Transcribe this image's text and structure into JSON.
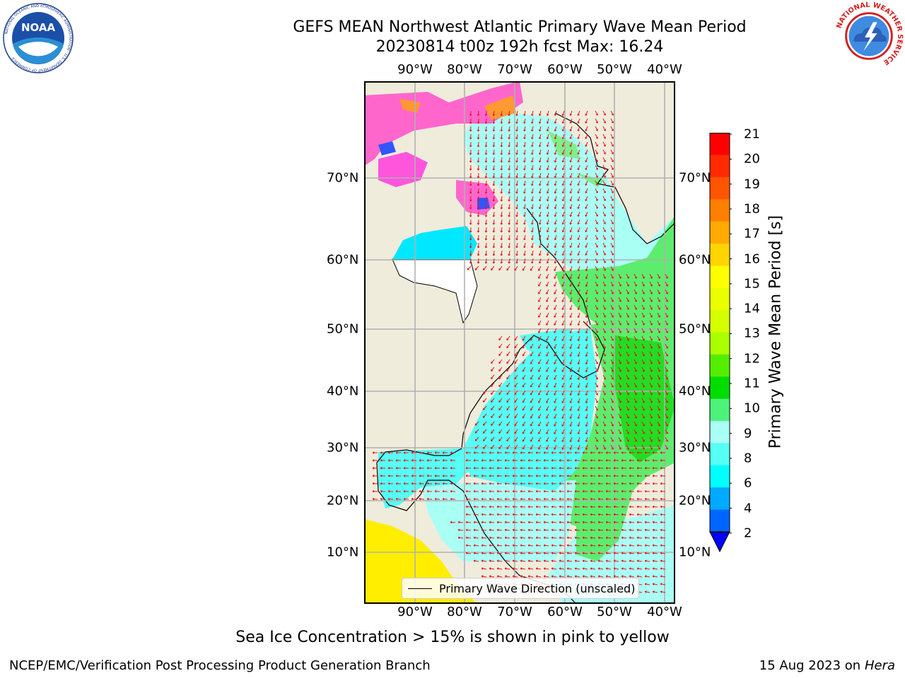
{
  "title": {
    "line1": "GEFS MEAN Northwest Atlantic Primary Wave Mean Period",
    "line2": "20230814 t00z 192h fcst   Max: 16.24"
  },
  "logos": {
    "left": {
      "icon": "noaa-logo-icon",
      "text": "NOAA",
      "ring_text": "NATIONAL OCEANIC AND ATMOSPHERIC ADMINISTRATION · U.S. DEPARTMENT OF COMMERCE"
    },
    "right": {
      "icon": "nws-logo-icon",
      "ring_text": "NATIONAL WEATHER SERVICE"
    }
  },
  "map": {
    "lon_labels": [
      "90°W",
      "80°W",
      "70°W",
      "60°W",
      "50°W",
      "40°W"
    ],
    "lat_labels": [
      "70°N",
      "60°N",
      "50°N",
      "40°N",
      "30°N",
      "20°N",
      "10°N"
    ],
    "land_color": "#efecdc",
    "grid_color": "#b0b0b0",
    "arrow_color": "#e8141c"
  },
  "colorbar": {
    "title": "Primary Wave Mean Period [s]",
    "ticks": [
      "21",
      "20",
      "19",
      "18",
      "17",
      "16",
      "15",
      "14",
      "13",
      "12",
      "11",
      "10",
      "9",
      "8",
      "6",
      "4",
      "2"
    ],
    "colors": [
      "#ff0000",
      "#ff2a00",
      "#ff5500",
      "#ff7f00",
      "#ffaa00",
      "#ffd400",
      "#ffff00",
      "#eaff00",
      "#d4ff00",
      "#aaff00",
      "#55ee00",
      "#00dd00",
      "#4cf27a",
      "#aafff5",
      "#55fff5",
      "#00ffff",
      "#00aaff",
      "#0066ff"
    ],
    "extend_color": "#0000ff"
  },
  "legend": {
    "label": "Primary Wave Direction (unscaled)"
  },
  "note": "Sea Ice Concentration > 15% is shown in pink to yellow",
  "footer": {
    "left": "NCEP/EMC/Verification Post Processing Product Generation Branch",
    "date": "15 Aug 2023 on",
    "host": "Hera"
  }
}
